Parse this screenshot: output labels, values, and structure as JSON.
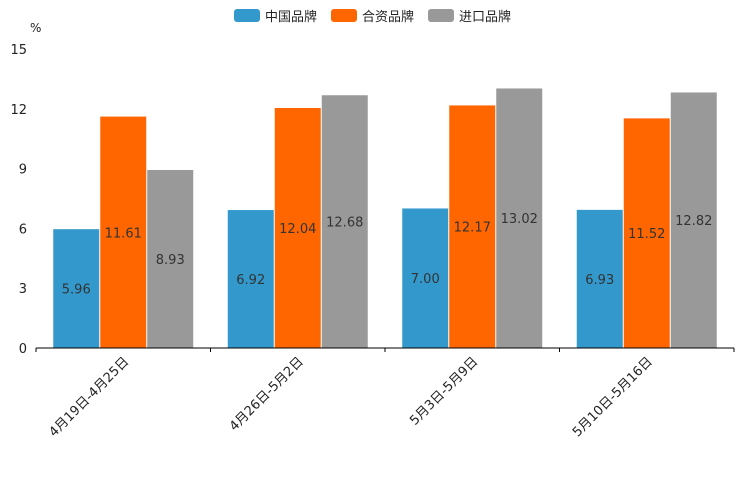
{
  "chart_data": {
    "type": "bar",
    "title": "",
    "xlabel": "",
    "ylabel": "%",
    "ylim": [
      0,
      15
    ],
    "yticks": [
      0,
      3,
      6,
      9,
      12,
      15
    ],
    "grid": false,
    "legend_position": "top-center",
    "categories": [
      "4月19日-4月25日",
      "4月26日-5月2日",
      "5月3日-5月9日",
      "5月10日-5月16日"
    ],
    "series": [
      {
        "name": "中国品牌",
        "color": "#3399cc",
        "values": [
          5.96,
          6.92,
          7.0,
          6.93
        ],
        "labels": [
          "5.96",
          "6.92",
          "7.00",
          "6.93"
        ]
      },
      {
        "name": "合资品牌",
        "color": "#ff6600",
        "values": [
          11.61,
          12.04,
          12.17,
          11.52
        ],
        "labels": [
          "11.61",
          "12.04",
          "12.17",
          "11.52"
        ]
      },
      {
        "name": "进口品牌",
        "color": "#999999",
        "values": [
          8.93,
          12.68,
          13.02,
          12.82
        ],
        "labels": [
          "8.93",
          "12.68",
          "13.02",
          "12.82"
        ]
      }
    ]
  }
}
